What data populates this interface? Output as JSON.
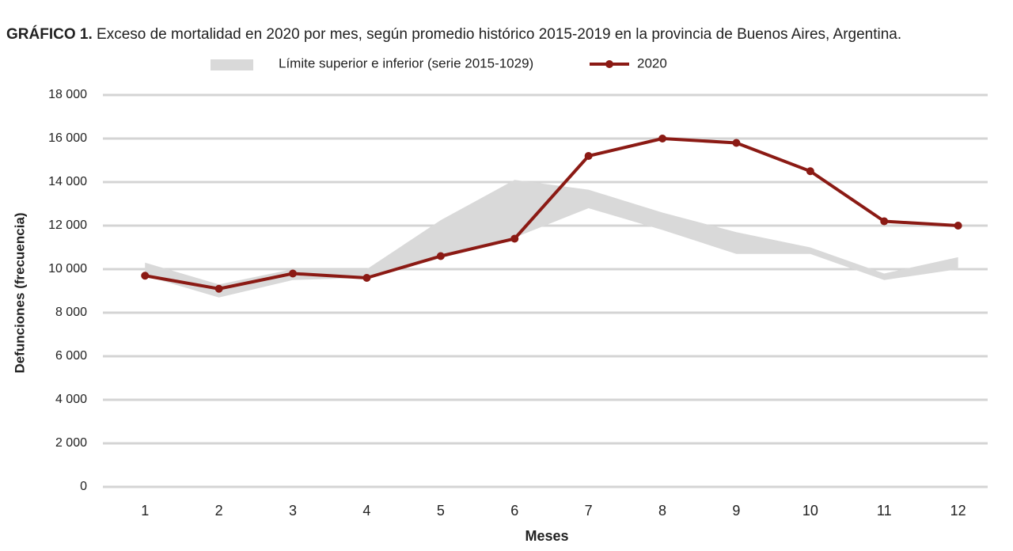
{
  "chart_data": {
    "type": "line",
    "title_prefix": "GRÁFICO 1.",
    "title": "Exceso de mortalidad en 2020 por mes, según promedio histórico 2015-2019 en la provincia de Buenos Aires, Argentina.",
    "xlabel": "Meses",
    "ylabel": "Defunciones (frecuencia)",
    "x": [
      1,
      2,
      3,
      4,
      5,
      6,
      7,
      8,
      9,
      10,
      11,
      12
    ],
    "xlim": [
      0.43,
      12.4
    ],
    "xticks": [
      1,
      2,
      3,
      4,
      5,
      6,
      7,
      8,
      9,
      10,
      11,
      12
    ],
    "ylim": [
      0,
      18000
    ],
    "yticks": [
      {
        "value": 0,
        "label": "0"
      },
      {
        "value": 2000,
        "label": "2 000"
      },
      {
        "value": 4000,
        "label": "4 000"
      },
      {
        "value": 6000,
        "label": "6 000"
      },
      {
        "value": 8000,
        "label": "8 000"
      },
      {
        "value": 10000,
        "label": "10 000"
      },
      {
        "value": 12000,
        "label": "12 000"
      },
      {
        "value": 14000,
        "label": "14 000"
      },
      {
        "value": 16000,
        "label": "16 000"
      },
      {
        "value": 18000,
        "label": "18 000"
      }
    ],
    "grid": true,
    "series": [
      {
        "name": "Límite superior e inferior (serie 2015-1029)",
        "type": "band",
        "color": "#d9d9d9",
        "upper": [
          10300,
          9300,
          10000,
          10000,
          12250,
          14100,
          13650,
          12600,
          11700,
          11000,
          9800,
          10550
        ],
        "lower": [
          9700,
          8700,
          9500,
          9600,
          10500,
          11450,
          12800,
          11800,
          10700,
          10700,
          9500,
          10000
        ]
      },
      {
        "name": "2020",
        "type": "line",
        "color": "#8b1a14",
        "values": [
          9700,
          9100,
          9800,
          9600,
          10600,
          11400,
          15200,
          16000,
          15800,
          14500,
          12200,
          12000
        ]
      }
    ]
  }
}
